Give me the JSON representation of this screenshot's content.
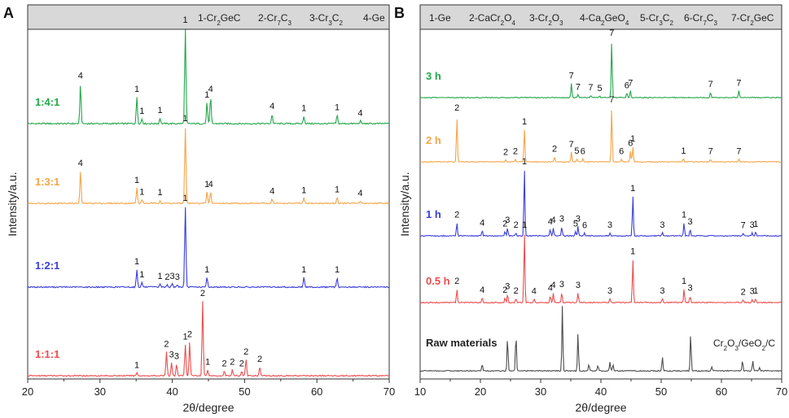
{
  "chart_data": [
    {
      "panel": "A",
      "type": "line",
      "xlabel": "2θ/degree",
      "ylabel": "Intensity/a.u.",
      "xlim": [
        20,
        70
      ],
      "xticks": [
        20,
        30,
        40,
        50,
        60,
        70
      ],
      "legend": [
        {
          "num": "1",
          "phase": "Cr",
          "sub1": "2",
          "rest": "GeC"
        },
        {
          "num": "2",
          "phase": "Cr",
          "sub1": "7",
          "rest": "C",
          "sub2": "3"
        },
        {
          "num": "3",
          "phase": "Cr",
          "sub1": "3",
          "rest": "C",
          "sub2": "2"
        },
        {
          "num": "4",
          "phase": "Ge"
        }
      ],
      "series": [
        {
          "name": "1:4:1",
          "color": "#22a84a",
          "peaks": [
            {
              "x": 27.3,
              "h": 0.42,
              "label": "4"
            },
            {
              "x": 35.1,
              "h": 0.28,
              "label": "1"
            },
            {
              "x": 35.8,
              "h": 0.05,
              "label": "1"
            },
            {
              "x": 38.3,
              "h": 0.06,
              "label": "1"
            },
            {
              "x": 41.8,
              "h": 1.0,
              "label": "1"
            },
            {
              "x": 44.8,
              "h": 0.22,
              "label": "1"
            },
            {
              "x": 45.3,
              "h": 0.28,
              "label": "4"
            },
            {
              "x": 53.8,
              "h": 0.1,
              "label": "4"
            },
            {
              "x": 58.2,
              "h": 0.08,
              "label": "1"
            },
            {
              "x": 62.8,
              "h": 0.09,
              "label": "1"
            },
            {
              "x": 66.0,
              "h": 0.03,
              "label": "4"
            }
          ]
        },
        {
          "name": "1:3:1",
          "color": "#f5a446",
          "peaks": [
            {
              "x": 27.3,
              "h": 0.42,
              "label": "4"
            },
            {
              "x": 35.1,
              "h": 0.2,
              "label": "1"
            },
            {
              "x": 35.8,
              "h": 0.05,
              "label": "1"
            },
            {
              "x": 38.3,
              "h": 0.04,
              "label": "1"
            },
            {
              "x": 41.8,
              "h": 1.0,
              "label": "1"
            },
            {
              "x": 44.8,
              "h": 0.15,
              "label": "1"
            },
            {
              "x": 45.3,
              "h": 0.15,
              "label": "4"
            },
            {
              "x": 53.8,
              "h": 0.06,
              "label": "4"
            },
            {
              "x": 58.2,
              "h": 0.07,
              "label": "1"
            },
            {
              "x": 62.8,
              "h": 0.08,
              "label": "1"
            },
            {
              "x": 66.0,
              "h": 0.03,
              "label": "4"
            }
          ]
        },
        {
          "name": "1:2:1",
          "color": "#3a3ddb",
          "peaks": [
            {
              "x": 35.1,
              "h": 0.22,
              "label": "1"
            },
            {
              "x": 35.8,
              "h": 0.06,
              "label": "1"
            },
            {
              "x": 38.3,
              "h": 0.04,
              "label": "1"
            },
            {
              "x": 39.3,
              "h": 0.03,
              "label": "2"
            },
            {
              "x": 40.0,
              "h": 0.04,
              "label": "3"
            },
            {
              "x": 40.7,
              "h": 0.03,
              "label": "3"
            },
            {
              "x": 41.8,
              "h": 1.0,
              "label": "1"
            },
            {
              "x": 44.8,
              "h": 0.12,
              "label": "1"
            },
            {
              "x": 58.2,
              "h": 0.12,
              "label": "1"
            },
            {
              "x": 62.8,
              "h": 0.12,
              "label": "1"
            }
          ]
        },
        {
          "name": "1:1:1",
          "color": "#ec4d4d",
          "peaks": [
            {
              "x": 35.1,
              "h": 0.04,
              "label": "1"
            },
            {
              "x": 39.2,
              "h": 0.32,
              "label": "2"
            },
            {
              "x": 39.9,
              "h": 0.18,
              "label": "3"
            },
            {
              "x": 40.6,
              "h": 0.16,
              "label": "3"
            },
            {
              "x": 41.8,
              "h": 0.42,
              "label": "1"
            },
            {
              "x": 42.4,
              "h": 0.45,
              "label": "2"
            },
            {
              "x": 44.2,
              "h": 1.0,
              "label": "2"
            },
            {
              "x": 44.9,
              "h": 0.08,
              "label": "1"
            },
            {
              "x": 47.2,
              "h": 0.06,
              "label": "2"
            },
            {
              "x": 48.3,
              "h": 0.08,
              "label": "2"
            },
            {
              "x": 49.6,
              "h": 0.06,
              "label": "2"
            },
            {
              "x": 50.2,
              "h": 0.22,
              "label": "2"
            },
            {
              "x": 52.1,
              "h": 0.12,
              "label": "2"
            }
          ]
        }
      ]
    },
    {
      "panel": "B",
      "type": "line",
      "xlabel": "2θ/degree",
      "ylabel": "Intensity/a.u.",
      "xlim": [
        10,
        70
      ],
      "xticks": [
        10,
        20,
        30,
        40,
        50,
        60,
        70
      ],
      "legend": [
        {
          "num": "1",
          "phase": "Ge"
        },
        {
          "num": "2",
          "phase": "CaCr",
          "sub1": "2",
          "rest": "O",
          "sub2": "4"
        },
        {
          "num": "3",
          "phase": "Cr",
          "sub1": "2",
          "rest": "O",
          "sub2": "3"
        },
        {
          "num": "4",
          "phase": "Ca",
          "sub1": "2",
          "rest": "GeO",
          "sub2": "4"
        },
        {
          "num": "5",
          "phase": "Cr",
          "sub1": "3",
          "rest": "C",
          "sub2": "2"
        },
        {
          "num": "6",
          "phase": "Cr",
          "sub1": "7",
          "rest": "C",
          "sub2": "3"
        },
        {
          "num": "7",
          "phase": "Cr",
          "sub1": "2",
          "rest": "GeC"
        }
      ],
      "series": [
        {
          "name": "3 h",
          "color": "#22a84a",
          "peaks": [
            {
              "x": 35.1,
              "h": 0.25,
              "label": "7"
            },
            {
              "x": 36.2,
              "h": 0.05,
              "label": "7"
            },
            {
              "x": 38.3,
              "h": 0.04,
              "label": "7"
            },
            {
              "x": 39.8,
              "h": 0.03,
              "label": "5"
            },
            {
              "x": 41.8,
              "h": 1.0,
              "label": "7"
            },
            {
              "x": 44.3,
              "h": 0.08,
              "label": "6"
            },
            {
              "x": 44.9,
              "h": 0.12,
              "label": "7"
            },
            {
              "x": 58.2,
              "h": 0.1,
              "label": "7"
            },
            {
              "x": 62.9,
              "h": 0.12,
              "label": "7"
            }
          ]
        },
        {
          "name": "2 h",
          "color": "#f5a446",
          "peaks": [
            {
              "x": 16.1,
              "h": 0.85,
              "label": "2"
            },
            {
              "x": 24.2,
              "h": 0.04,
              "label": "2"
            },
            {
              "x": 25.8,
              "h": 0.05,
              "label": "2"
            },
            {
              "x": 27.3,
              "h": 0.6,
              "label": "1"
            },
            {
              "x": 32.3,
              "h": 0.1,
              "label": "2"
            },
            {
              "x": 35.1,
              "h": 0.18,
              "label": "7"
            },
            {
              "x": 36.0,
              "h": 0.06,
              "label": "5"
            },
            {
              "x": 37.0,
              "h": 0.05,
              "label": "6"
            },
            {
              "x": 41.8,
              "h": 1.0,
              "label": "7"
            },
            {
              "x": 43.4,
              "h": 0.05,
              "label": "6"
            },
            {
              "x": 44.9,
              "h": 0.2,
              "label": "6"
            },
            {
              "x": 45.3,
              "h": 0.28,
              "label": "1"
            },
            {
              "x": 53.7,
              "h": 0.06,
              "label": "1"
            },
            {
              "x": 58.2,
              "h": 0.05,
              "label": "7"
            },
            {
              "x": 62.9,
              "h": 0.05,
              "label": "7"
            }
          ]
        },
        {
          "name": "1 h",
          "color": "#3a3ddb",
          "peaks": [
            {
              "x": 16.1,
              "h": 0.2,
              "label": "2"
            },
            {
              "x": 20.3,
              "h": 0.08,
              "label": "4"
            },
            {
              "x": 24.1,
              "h": 0.07,
              "label": "2"
            },
            {
              "x": 24.5,
              "h": 0.12,
              "label": "3"
            },
            {
              "x": 25.9,
              "h": 0.05,
              "label": "2"
            },
            {
              "x": 27.3,
              "h": 1.0,
              "label": "1"
            },
            {
              "x": 31.6,
              "h": 0.1,
              "label": "4"
            },
            {
              "x": 32.1,
              "h": 0.12,
              "label": "4"
            },
            {
              "x": 33.5,
              "h": 0.14,
              "label": "3"
            },
            {
              "x": 35.8,
              "h": 0.07,
              "label": "5"
            },
            {
              "x": 36.2,
              "h": 0.14,
              "label": "3"
            },
            {
              "x": 37.3,
              "h": 0.04,
              "label": "6"
            },
            {
              "x": 41.5,
              "h": 0.05,
              "label": "3"
            },
            {
              "x": 45.3,
              "h": 0.6,
              "label": "1"
            },
            {
              "x": 50.2,
              "h": 0.05,
              "label": "3"
            },
            {
              "x": 53.8,
              "h": 0.2,
              "label": "1"
            },
            {
              "x": 54.8,
              "h": 0.1,
              "label": "3"
            },
            {
              "x": 63.6,
              "h": 0.04,
              "label": "7"
            },
            {
              "x": 65.1,
              "h": 0.05,
              "label": "3"
            },
            {
              "x": 65.7,
              "h": 0.06,
              "label": "1"
            }
          ]
        },
        {
          "name": "0.5 h",
          "color": "#ec4d4d",
          "peaks": [
            {
              "x": 16.1,
              "h": 0.2,
              "label": "2"
            },
            {
              "x": 20.3,
              "h": 0.07,
              "label": "4"
            },
            {
              "x": 24.1,
              "h": 0.07,
              "label": "2"
            },
            {
              "x": 24.5,
              "h": 0.12,
              "label": "3"
            },
            {
              "x": 25.9,
              "h": 0.06,
              "label": "2"
            },
            {
              "x": 27.3,
              "h": 1.0,
              "label": "1"
            },
            {
              "x": 28.9,
              "h": 0.05,
              "label": "4"
            },
            {
              "x": 31.6,
              "h": 0.1,
              "label": "4"
            },
            {
              "x": 32.1,
              "h": 0.14,
              "label": "4"
            },
            {
              "x": 33.5,
              "h": 0.15,
              "label": "3"
            },
            {
              "x": 36.2,
              "h": 0.14,
              "label": "3"
            },
            {
              "x": 41.5,
              "h": 0.06,
              "label": "3"
            },
            {
              "x": 45.3,
              "h": 0.62,
              "label": "1"
            },
            {
              "x": 50.2,
              "h": 0.06,
              "label": "3"
            },
            {
              "x": 53.8,
              "h": 0.2,
              "label": "1"
            },
            {
              "x": 54.8,
              "h": 0.1,
              "label": "3"
            },
            {
              "x": 63.6,
              "h": 0.04,
              "label": "2"
            },
            {
              "x": 65.1,
              "h": 0.05,
              "label": "3"
            },
            {
              "x": 65.7,
              "h": 0.06,
              "label": "1"
            }
          ]
        },
        {
          "name": "Raw materials",
          "color": "#4d4d4d",
          "annotation": "Cr2O3/GeO2/C",
          "peaks": [
            {
              "x": 20.3,
              "h": 0.1
            },
            {
              "x": 24.5,
              "h": 0.52
            },
            {
              "x": 25.9,
              "h": 0.58
            },
            {
              "x": 33.6,
              "h": 1.0
            },
            {
              "x": 36.2,
              "h": 0.58
            },
            {
              "x": 38.0,
              "h": 0.1
            },
            {
              "x": 39.5,
              "h": 0.08
            },
            {
              "x": 41.5,
              "h": 0.14
            },
            {
              "x": 42.0,
              "h": 0.1
            },
            {
              "x": 50.2,
              "h": 0.22
            },
            {
              "x": 54.9,
              "h": 0.58
            },
            {
              "x": 58.4,
              "h": 0.06
            },
            {
              "x": 63.5,
              "h": 0.16
            },
            {
              "x": 65.2,
              "h": 0.16
            },
            {
              "x": 66.3,
              "h": 0.05
            }
          ]
        }
      ]
    }
  ]
}
